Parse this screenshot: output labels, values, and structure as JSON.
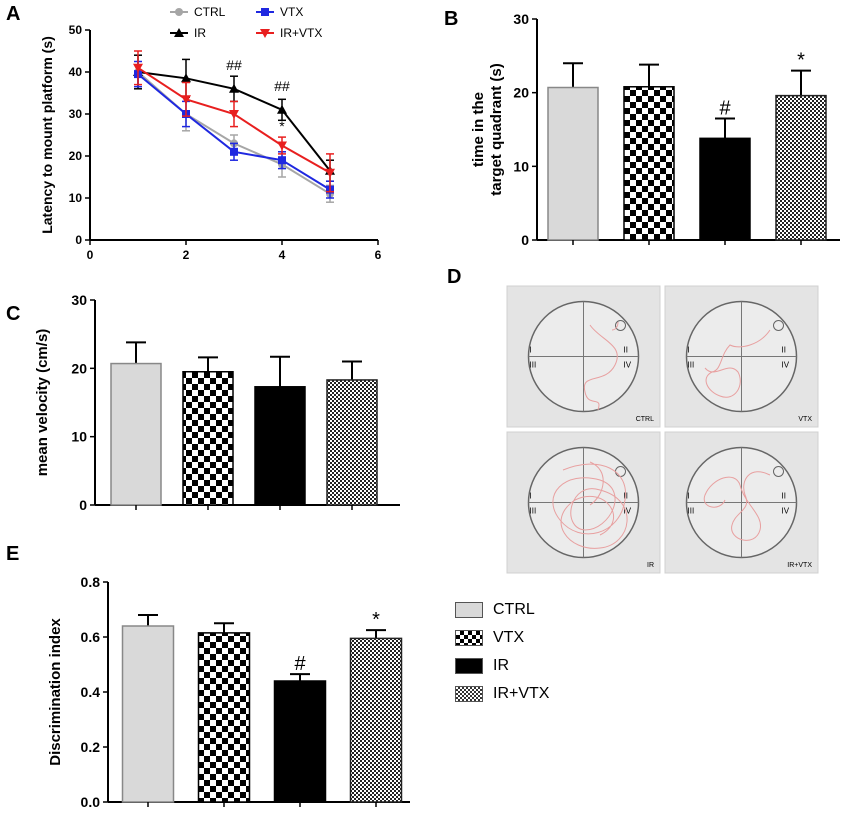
{
  "colors": {
    "ctrl": "#a6a6a6",
    "ir": "#000000",
    "vtx": "#1f28e0",
    "irvtx": "#e81f1f",
    "bar_ctrl": "#d9d9d9",
    "bar_ir": "#000000",
    "track": "#e8a0a0",
    "panel_bg": "#e4e4e4"
  },
  "chart_data": [
    {
      "panel": "A",
      "type": "line",
      "ylabel": "Latency to mount platform (s)",
      "xlabel": "",
      "xlim": [
        0,
        6
      ],
      "ylim": [
        0,
        50
      ],
      "xticks": [
        "0",
        "2",
        "4",
        "6"
      ],
      "yticks": [
        "0",
        "10",
        "20",
        "30",
        "40",
        "50"
      ],
      "legend": [
        "CTRL",
        "IR",
        "VTX",
        "IR+VTX"
      ],
      "x": [
        1,
        2,
        3,
        4,
        5
      ],
      "series": [
        {
          "name": "CTRL",
          "values": [
            40,
            30,
            23,
            18,
            11
          ],
          "errors": [
            4,
            4,
            2,
            3,
            2
          ]
        },
        {
          "name": "IR",
          "values": [
            40,
            38.5,
            36,
            31,
            16.5
          ],
          "errors": [
            4,
            4.5,
            3,
            2.5,
            2.5
          ]
        },
        {
          "name": "VTX",
          "values": [
            39.5,
            30,
            21,
            19,
            12
          ],
          "errors": [
            3,
            3,
            2,
            2,
            2
          ]
        },
        {
          "name": "IR+VTX",
          "values": [
            41,
            33.5,
            30,
            22.5,
            16
          ],
          "errors": [
            4,
            4,
            3,
            2,
            4.5
          ]
        }
      ],
      "annotations": [
        {
          "x": 3,
          "y": 40.5,
          "text": "##"
        },
        {
          "x": 4,
          "y": 35.5,
          "text": "##"
        },
        {
          "x": 4,
          "y": 26,
          "text": "*"
        }
      ]
    },
    {
      "panel": "B",
      "type": "bar",
      "ylabel_lines": [
        "time in the",
        "target quadrant (s)"
      ],
      "ylim": [
        0,
        30
      ],
      "yticks": [
        "0",
        "10",
        "20",
        "30"
      ],
      "categories": [
        "CTRL",
        "VTX",
        "IR",
        "IR+VTX"
      ],
      "values": [
        20.7,
        20.8,
        13.8,
        19.6
      ],
      "errors": [
        3.3,
        3,
        2.7,
        3.4
      ],
      "annotations": [
        "",
        "",
        "#",
        "*"
      ]
    },
    {
      "panel": "C",
      "type": "bar",
      "ylabel": "mean velocity (cm/s)",
      "ylim": [
        0,
        30
      ],
      "yticks": [
        "0",
        "10",
        "20",
        "30"
      ],
      "categories": [
        "CTRL",
        "VTX",
        "IR",
        "IR+VTX"
      ],
      "values": [
        20.7,
        19.5,
        17.3,
        18.3
      ],
      "errors": [
        3.1,
        2.1,
        4.4,
        2.7
      ],
      "annotations": [
        "",
        "",
        "",
        ""
      ]
    },
    {
      "panel": "E",
      "type": "bar",
      "ylabel": "Discrimination index",
      "ylim": [
        0,
        0.8
      ],
      "yticks": [
        "0.0",
        "0.2",
        "0.4",
        "0.6",
        "0.8"
      ],
      "categories": [
        "CTRL",
        "VTX",
        "IR",
        "IR+VTX"
      ],
      "values": [
        0.64,
        0.615,
        0.44,
        0.595
      ],
      "errors": [
        0.04,
        0.035,
        0.025,
        0.03
      ],
      "annotations": [
        "",
        "",
        "#",
        "*"
      ]
    }
  ],
  "panel_labels": {
    "a": "A",
    "b": "B",
    "c": "C",
    "d": "D",
    "e": "E"
  },
  "track_panels": [
    {
      "label": "CTRL",
      "q1": "I",
      "q2": "II",
      "q3": "III",
      "q4": "IV"
    },
    {
      "label": "VTX",
      "q1": "I",
      "q2": "II",
      "q3": "III",
      "q4": "IV"
    },
    {
      "label": "IR",
      "q1": "I",
      "q2": "II",
      "q3": "III",
      "q4": "IV"
    },
    {
      "label": "IR+VTX",
      "q1": "I",
      "q2": "II",
      "q3": "III",
      "q4": "IV"
    }
  ],
  "bar_legend": [
    {
      "label": "CTRL",
      "pattern": "ctrl"
    },
    {
      "label": "VTX",
      "pattern": "check"
    },
    {
      "label": "IR",
      "pattern": "ir"
    },
    {
      "label": "IR+VTX",
      "pattern": "fine"
    }
  ]
}
